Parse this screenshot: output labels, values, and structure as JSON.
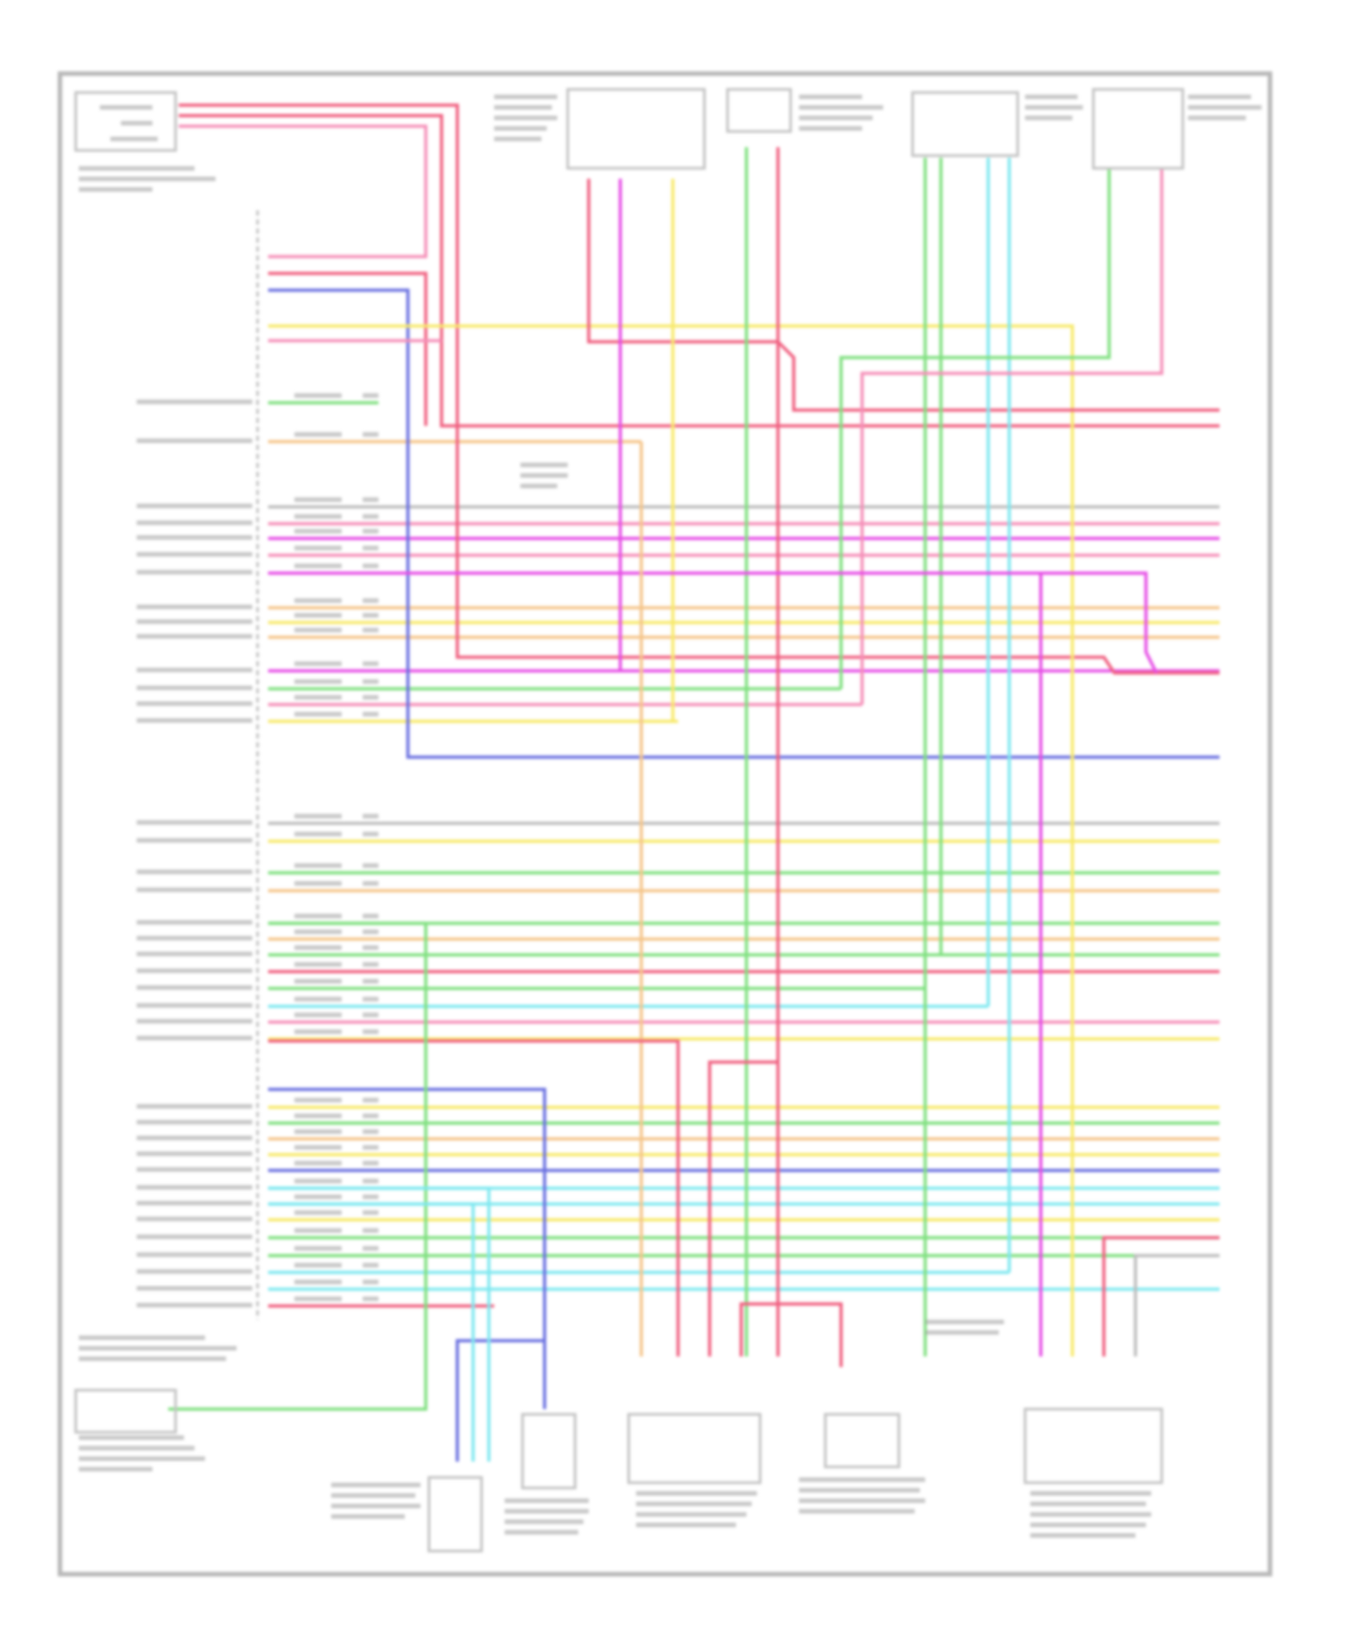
{
  "diagram": {
    "frame_color": "#b8b8b8",
    "component_color": "#c4c4c4",
    "label_color": "#9a9a9a",
    "wire_colors": {
      "red": "#f06080",
      "pink": "#f58fb8",
      "magenta": "#e64ee6",
      "yellow": "#f7e96a",
      "orange": "#f5c58a",
      "green": "#7fe07f",
      "blue": "#6a70e0",
      "cyan": "#7fe8f0",
      "gray": "#bdbdbd"
    }
  }
}
